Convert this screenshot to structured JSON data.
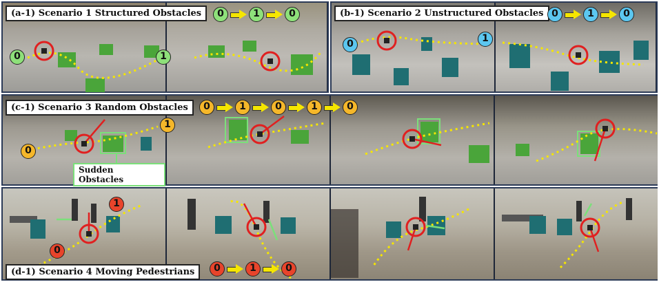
{
  "panels": {
    "a": {
      "title": "(a-1) Scenario 1 Structured Obstacles",
      "sequence": [
        "0",
        "1",
        "0"
      ],
      "markers": [
        "0",
        "1"
      ]
    },
    "b": {
      "title": "(b-1) Scenario 2 Unstructured Obstacles",
      "sequence": [
        "0",
        "1",
        "0"
      ],
      "markers": [
        "0",
        "1"
      ]
    },
    "c": {
      "title": "(c-1) Scenario 3 Random Obstacles",
      "sequence": [
        "0",
        "1",
        "0",
        "1",
        "0"
      ],
      "markers": [
        "0",
        "1"
      ],
      "sudden_label": "Sudden Obstacles"
    },
    "d": {
      "title": "(d-1) Scenario 4 Moving Pedestrians",
      "sequence": [
        "0",
        "1",
        "0"
      ],
      "markers": [
        "1",
        "0"
      ]
    }
  },
  "colors": {
    "scenario1": "#8ee07a",
    "scenario2": "#5cc7f0",
    "scenario3": "#f5b72a",
    "scenario4": "#e8442b",
    "path": "#f5e600",
    "robot_circle": "#e02020",
    "frame": "#2b3a57"
  }
}
